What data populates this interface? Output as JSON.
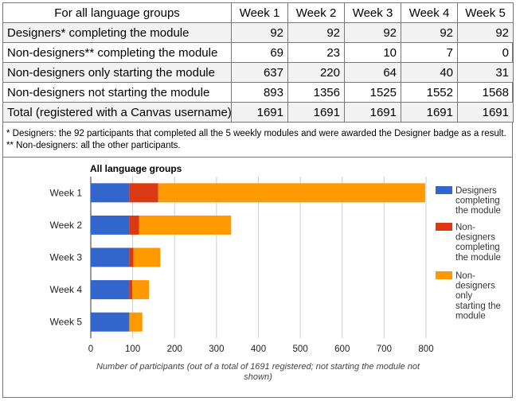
{
  "table": {
    "header": [
      "For all language groups",
      "Week 1",
      "Week 2",
      "Week 3",
      "Week 4",
      "Week 5"
    ],
    "rows": [
      {
        "label": "Designers* completing the module",
        "values": [
          "92",
          "92",
          "92",
          "92",
          "92"
        ]
      },
      {
        "label": "Non-designers** completing the module",
        "values": [
          "69",
          "23",
          "10",
          "7",
          "0"
        ]
      },
      {
        "label": "Non-designers only starting the module",
        "values": [
          "637",
          "220",
          "64",
          "40",
          "31"
        ]
      },
      {
        "label": "Non-designers not starting the module",
        "values": [
          "893",
          "1356",
          "1525",
          "1552",
          "1568"
        ]
      },
      {
        "label": "Total (registered with a Canvas username)",
        "values": [
          "1691",
          "1691",
          "1691",
          "1691",
          "1691"
        ]
      }
    ]
  },
  "notes": {
    "note1": "* Designers: the 92 participants that completed all the 5 weekly modules and were awarded the Designer badge as a result.",
    "note2": "** Non-designers: all the other participants."
  },
  "chart_data": {
    "type": "bar",
    "orientation": "horizontal",
    "stacked": true,
    "title": "All language groups",
    "categories": [
      "Week 1",
      "Week 2",
      "Week 3",
      "Week 4",
      "Week 5"
    ],
    "series": [
      {
        "name": "Designers completing the module",
        "color": "#3366cc",
        "values": [
          92,
          92,
          92,
          92,
          92
        ]
      },
      {
        "name": "Non-designers completing the module",
        "color": "#dc3912",
        "values": [
          69,
          23,
          10,
          7,
          0
        ]
      },
      {
        "name": "Non-designers only starting the module",
        "color": "#ff9900",
        "values": [
          637,
          220,
          64,
          40,
          31
        ]
      }
    ],
    "legend_lines": [
      [
        "Designers",
        "completing",
        "the module"
      ],
      [
        "Non-",
        "designers",
        "completing",
        "the module"
      ],
      [
        "Non-",
        "designers",
        "only",
        "starting the",
        "module"
      ]
    ],
    "xlabel_lines": [
      "Number of participants (out of a total of 1691 registered; not starting the module not",
      "shown)"
    ],
    "ylabel": "",
    "xlim": [
      0,
      800
    ],
    "xticks": [
      0,
      100,
      200,
      300,
      400,
      500,
      600,
      700,
      800
    ],
    "grid": true,
    "legend_position": "right"
  }
}
